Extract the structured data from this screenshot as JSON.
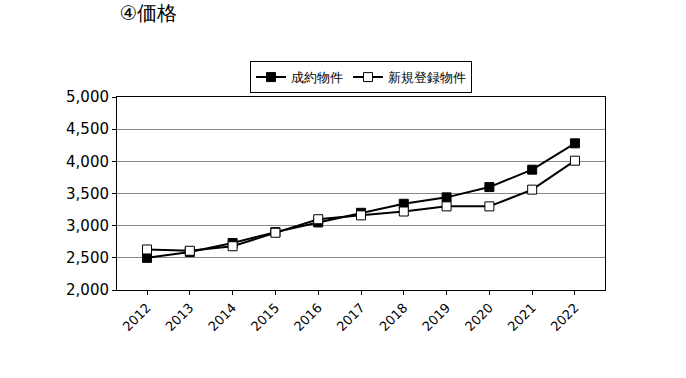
{
  "chart_data": {
    "type": "line",
    "title": "④価格",
    "categories": [
      "2012",
      "2013",
      "2014",
      "2015",
      "2016",
      "2017",
      "2018",
      "2019",
      "2020",
      "2021",
      "2022"
    ],
    "series": [
      {
        "name": "成約物件",
        "color": "#000000",
        "marker": "square",
        "line_style": "solid",
        "values": [
          2500,
          2590,
          2730,
          2900,
          3050,
          3200,
          3340,
          3440,
          3600,
          3870,
          4280
        ]
      },
      {
        "name": "新規登録物件",
        "color": "#000000",
        "marker": "square-open",
        "line_style": "solid",
        "values": [
          2630,
          2610,
          2680,
          2890,
          3100,
          3160,
          3220,
          3300,
          3300,
          3560,
          4010
        ]
      }
    ],
    "ylim": [
      2000,
      5000
    ],
    "yticks": [
      {
        "value": 2000,
        "label": "2,000"
      },
      {
        "value": 2500,
        "label": "2,500"
      },
      {
        "value": 3000,
        "label": "3,000"
      },
      {
        "value": 3500,
        "label": "3,500"
      },
      {
        "value": 4000,
        "label": "4,000"
      },
      {
        "value": 4500,
        "label": "4,500"
      },
      {
        "value": 5000,
        "label": "5,000"
      }
    ],
    "grid": true,
    "legend": "top"
  }
}
